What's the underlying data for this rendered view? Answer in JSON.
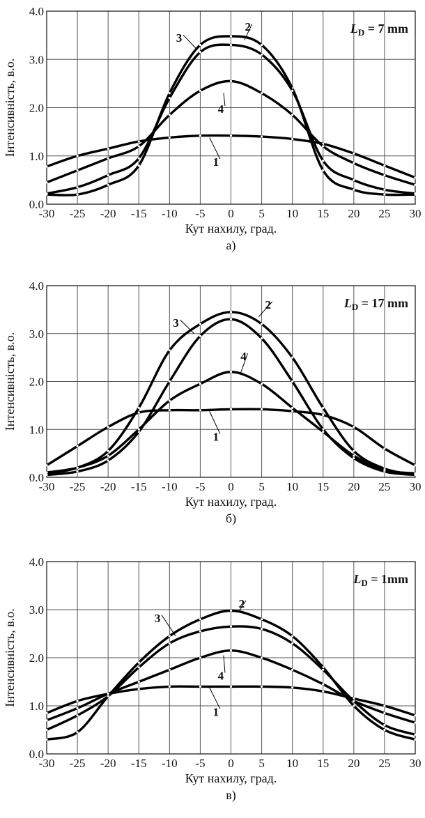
{
  "chart_data": [
    {
      "type": "line",
      "caption": "а)",
      "annotation_main": "L",
      "annotation_sub": "D",
      "annotation_rest": " = 7 mm",
      "xlabel": "Кут нахилу, град.",
      "ylabel": "Інтенсивність, в.о.",
      "xlim": [
        -30,
        30
      ],
      "ylim": [
        0,
        4
      ],
      "grid": true,
      "xticks": [
        "-30",
        "-25",
        "-20",
        "-15",
        "-10",
        "-5",
        "0",
        "5",
        "10",
        "15",
        "20",
        "25",
        "30"
      ],
      "yticks": [
        "0.0",
        "1.0",
        "2.0",
        "3.0",
        "4.0"
      ],
      "x": [
        -30,
        -25,
        -20,
        -15,
        -10,
        -5,
        0,
        5,
        10,
        15,
        20,
        25,
        30
      ],
      "series": [
        {
          "name": "1",
          "values": [
            0.78,
            1.0,
            1.15,
            1.3,
            1.38,
            1.42,
            1.42,
            1.4,
            1.35,
            1.25,
            1.05,
            0.8,
            0.55
          ]
        },
        {
          "name": "2",
          "values": [
            0.2,
            0.2,
            0.4,
            0.8,
            2.3,
            3.3,
            3.48,
            3.3,
            2.4,
            0.7,
            0.3,
            0.2,
            0.2
          ]
        },
        {
          "name": "3",
          "values": [
            0.22,
            0.35,
            0.6,
            0.95,
            2.2,
            3.15,
            3.3,
            3.1,
            2.35,
            0.9,
            0.5,
            0.3,
            0.22
          ]
        },
        {
          "name": "4",
          "values": [
            0.45,
            0.7,
            0.95,
            1.2,
            1.85,
            2.35,
            2.55,
            2.3,
            1.85,
            1.2,
            0.85,
            0.6,
            0.4
          ]
        }
      ]
    },
    {
      "type": "line",
      "caption": "б)",
      "annotation_main": "L",
      "annotation_sub": "D",
      "annotation_rest": " = 17 mm",
      "xlabel": "Кут нахилу, град.",
      "ylabel": "Інтенсивність, в.о.",
      "xlim": [
        -30,
        30
      ],
      "ylim": [
        0,
        4
      ],
      "grid": true,
      "xticks": [
        "-30",
        "-25",
        "-20",
        "-15",
        "-10",
        "-5",
        "0",
        "5",
        "10",
        "15",
        "20",
        "25",
        "30"
      ],
      "yticks": [
        "0.0",
        "1.0",
        "2.0",
        "3.0",
        "4.0"
      ],
      "x": [
        -30,
        -25,
        -20,
        -15,
        -10,
        -5,
        0,
        5,
        10,
        15,
        20,
        25,
        30
      ],
      "series": [
        {
          "name": "1",
          "values": [
            0.25,
            0.65,
            1.05,
            1.35,
            1.4,
            1.4,
            1.42,
            1.42,
            1.38,
            1.3,
            1.05,
            0.6,
            0.25
          ]
        },
        {
          "name": "2",
          "values": [
            0.08,
            0.2,
            0.55,
            1.45,
            2.65,
            3.2,
            3.45,
            3.2,
            2.5,
            1.45,
            0.55,
            0.18,
            0.05
          ]
        },
        {
          "name": "3",
          "values": [
            0.05,
            0.12,
            0.35,
            0.95,
            2.0,
            2.95,
            3.3,
            2.9,
            2.0,
            1.0,
            0.4,
            0.12,
            0.05
          ]
        },
        {
          "name": "4",
          "values": [
            0.1,
            0.2,
            0.45,
            1.0,
            1.6,
            1.95,
            2.2,
            1.95,
            1.45,
            0.95,
            0.45,
            0.15,
            0.08
          ]
        }
      ]
    },
    {
      "type": "line",
      "caption": "в)",
      "annotation_main": "L",
      "annotation_sub": "D",
      "annotation_rest": " = 1mm",
      "xlabel": "Кут нахилу, град.",
      "ylabel": "Інтенсивність, в.о.",
      "xlim": [
        -30,
        30
      ],
      "ylim": [
        0,
        4
      ],
      "grid": true,
      "xticks": [
        "-30",
        "-25",
        "-20",
        "-15",
        "-10",
        "-5",
        "0",
        "5",
        "10",
        "15",
        "20",
        "25",
        "30"
      ],
      "yticks": [
        "0.0",
        "1.0",
        "2.0",
        "3.0",
        "4.0"
      ],
      "x": [
        -30,
        -25,
        -20,
        -15,
        -10,
        -5,
        0,
        5,
        10,
        15,
        20,
        25,
        30
      ],
      "series": [
        {
          "name": "1",
          "values": [
            0.85,
            1.1,
            1.25,
            1.35,
            1.4,
            1.4,
            1.4,
            1.4,
            1.38,
            1.3,
            1.15,
            1.0,
            0.8
          ]
        },
        {
          "name": "2",
          "values": [
            0.3,
            0.45,
            1.2,
            1.9,
            2.45,
            2.8,
            2.98,
            2.8,
            2.45,
            1.8,
            1.0,
            0.5,
            0.3
          ]
        },
        {
          "name": "3",
          "values": [
            0.5,
            0.8,
            1.2,
            1.8,
            2.3,
            2.55,
            2.65,
            2.6,
            2.3,
            1.75,
            1.1,
            0.6,
            0.4
          ]
        },
        {
          "name": "4",
          "values": [
            0.7,
            0.95,
            1.25,
            1.5,
            1.75,
            2.0,
            2.15,
            2.0,
            1.75,
            1.45,
            1.1,
            0.85,
            0.65
          ]
        }
      ]
    }
  ]
}
